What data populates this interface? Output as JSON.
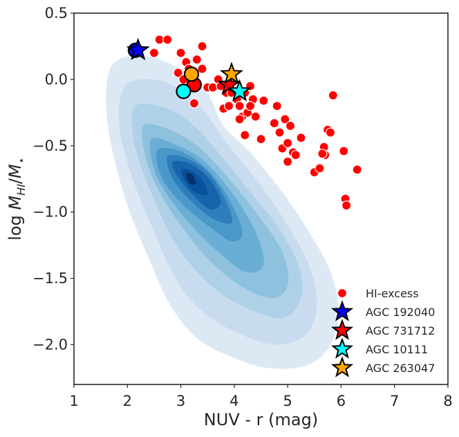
{
  "chart_data": {
    "type": "scatter",
    "title": "",
    "xlabel": "NUV - r (mag)",
    "ylabel": "log M_HI/M_*",
    "ylabel_parts": {
      "main": "log ",
      "m1": "M",
      "sub1": "HI",
      "slash": "/",
      "m2": "M",
      "sub2": "⋆"
    },
    "xlim": [
      1,
      8
    ],
    "ylim": [
      -2.3,
      0.5
    ],
    "xticks": [
      1,
      2,
      3,
      4,
      5,
      6,
      7,
      8
    ],
    "xtick_labels": [
      "1",
      "2",
      "3",
      "4",
      "5",
      "6",
      "7",
      "8"
    ],
    "yticks": [
      0.5,
      0.0,
      -0.5,
      -1.0,
      -1.5,
      -2.0
    ],
    "ytick_labels": [
      "0.5",
      "0.0",
      "−0.5",
      "−1.0",
      "−1.5",
      "−2.0"
    ],
    "grid": false,
    "legend_position": "lower-right",
    "density_background": {
      "description_colormap": "Blues",
      "peak": [
        3.1,
        -0.75
      ],
      "levels": [
        {
          "color": "#dce9f5",
          "ring": [
            [
              1.7,
              0.1
            ],
            [
              2.1,
              0.18
            ],
            [
              2.6,
              0.15
            ],
            [
              3.1,
              0.05
            ],
            [
              3.5,
              -0.1
            ],
            [
              3.8,
              -0.35
            ],
            [
              4.3,
              -0.55
            ],
            [
              4.9,
              -0.85
            ],
            [
              5.4,
              -1.15
            ],
            [
              5.8,
              -1.45
            ],
            [
              5.95,
              -1.75
            ],
            [
              5.8,
              -2.0
            ],
            [
              5.4,
              -2.15
            ],
            [
              4.7,
              -2.18
            ],
            [
              4.0,
              -2.1
            ],
            [
              3.3,
              -1.95
            ],
            [
              2.8,
              -1.7
            ],
            [
              2.4,
              -1.35
            ],
            [
              2.0,
              -0.95
            ],
            [
              1.7,
              -0.5
            ],
            [
              1.6,
              -0.15
            ]
          ]
        },
        {
          "color": "#c9dcef",
          "ring": [
            [
              1.95,
              -0.05
            ],
            [
              2.5,
              0.0
            ],
            [
              3.0,
              -0.08
            ],
            [
              3.45,
              -0.25
            ],
            [
              3.9,
              -0.5
            ],
            [
              4.5,
              -0.8
            ],
            [
              5.0,
              -1.1
            ],
            [
              5.4,
              -1.4
            ],
            [
              5.55,
              -1.7
            ],
            [
              5.35,
              -1.92
            ],
            [
              4.8,
              -2.0
            ],
            [
              4.1,
              -1.92
            ],
            [
              3.4,
              -1.75
            ],
            [
              2.9,
              -1.5
            ],
            [
              2.5,
              -1.15
            ],
            [
              2.1,
              -0.75
            ],
            [
              1.85,
              -0.35
            ]
          ]
        },
        {
          "color": "#afd1e7",
          "ring": [
            [
              2.15,
              -0.2
            ],
            [
              2.6,
              -0.2
            ],
            [
              3.1,
              -0.3
            ],
            [
              3.6,
              -0.5
            ],
            [
              4.2,
              -0.8
            ],
            [
              4.8,
              -1.1
            ],
            [
              5.2,
              -1.4
            ],
            [
              5.25,
              -1.65
            ],
            [
              4.9,
              -1.8
            ],
            [
              4.2,
              -1.72
            ],
            [
              3.55,
              -1.55
            ],
            [
              3.0,
              -1.3
            ],
            [
              2.6,
              -1.0
            ],
            [
              2.25,
              -0.65
            ],
            [
              2.1,
              -0.4
            ]
          ]
        },
        {
          "color": "#8dc1dd",
          "ring": [
            [
              2.3,
              -0.35
            ],
            [
              2.8,
              -0.38
            ],
            [
              3.3,
              -0.5
            ],
            [
              3.8,
              -0.7
            ],
            [
              4.4,
              -1.0
            ],
            [
              4.9,
              -1.3
            ],
            [
              5.0,
              -1.55
            ],
            [
              4.7,
              -1.65
            ],
            [
              4.1,
              -1.55
            ],
            [
              3.5,
              -1.35
            ],
            [
              3.0,
              -1.1
            ],
            [
              2.6,
              -0.85
            ],
            [
              2.35,
              -0.6
            ]
          ]
        },
        {
          "color": "#6aaed6",
          "ring": [
            [
              2.45,
              -0.45
            ],
            [
              2.95,
              -0.5
            ],
            [
              3.45,
              -0.62
            ],
            [
              3.95,
              -0.85
            ],
            [
              4.4,
              -1.15
            ],
            [
              4.55,
              -1.4
            ],
            [
              4.2,
              -1.45
            ],
            [
              3.7,
              -1.3
            ],
            [
              3.2,
              -1.1
            ],
            [
              2.8,
              -0.9
            ],
            [
              2.5,
              -0.68
            ]
          ]
        },
        {
          "color": "#4a98c9",
          "ring": [
            [
              2.6,
              -0.52
            ],
            [
              3.05,
              -0.55
            ],
            [
              3.5,
              -0.68
            ],
            [
              3.9,
              -0.9
            ],
            [
              4.15,
              -1.15
            ],
            [
              3.95,
              -1.22
            ],
            [
              3.5,
              -1.1
            ],
            [
              3.05,
              -0.95
            ],
            [
              2.7,
              -0.78
            ],
            [
              2.55,
              -0.62
            ]
          ]
        },
        {
          "color": "#2e7ebc",
          "ring": [
            [
              2.75,
              -0.58
            ],
            [
              3.15,
              -0.6
            ],
            [
              3.55,
              -0.72
            ],
            [
              3.85,
              -0.92
            ],
            [
              3.95,
              -1.08
            ],
            [
              3.6,
              -1.05
            ],
            [
              3.2,
              -0.92
            ],
            [
              2.85,
              -0.75
            ]
          ]
        },
        {
          "color": "#1764ab",
          "ring": [
            [
              2.85,
              -0.62
            ],
            [
              3.2,
              -0.64
            ],
            [
              3.55,
              -0.76
            ],
            [
              3.75,
              -0.92
            ],
            [
              3.55,
              -0.98
            ],
            [
              3.2,
              -0.86
            ],
            [
              2.92,
              -0.72
            ]
          ]
        },
        {
          "color": "#08519c",
          "ring": [
            [
              3.0,
              -0.68
            ],
            [
              3.2,
              -0.69
            ],
            [
              3.4,
              -0.76
            ],
            [
              3.5,
              -0.86
            ],
            [
              3.3,
              -0.86
            ],
            [
              3.1,
              -0.78
            ]
          ]
        },
        {
          "color": "#08306b",
          "ring": [
            [
              3.1,
              -0.71
            ],
            [
              3.22,
              -0.72
            ],
            [
              3.28,
              -0.79
            ],
            [
              3.15,
              -0.78
            ]
          ]
        }
      ]
    },
    "series": [
      {
        "name": "HI-excess",
        "marker": "circle",
        "color": "#ff0000",
        "points": [
          [
            2.5,
            0.2
          ],
          [
            2.6,
            0.3
          ],
          [
            2.75,
            0.3
          ],
          [
            3.0,
            0.2
          ],
          [
            3.1,
            0.13
          ],
          [
            3.15,
            0.08
          ],
          [
            2.95,
            0.05
          ],
          [
            3.05,
            0.0
          ],
          [
            3.3,
            0.15
          ],
          [
            3.4,
            0.25
          ],
          [
            3.4,
            0.08
          ],
          [
            3.5,
            -0.06
          ],
          [
            3.6,
            -0.06
          ],
          [
            3.7,
            0.0
          ],
          [
            3.25,
            -0.18
          ],
          [
            3.75,
            -0.05
          ],
          [
            3.85,
            -0.1
          ],
          [
            3.8,
            -0.22
          ],
          [
            3.9,
            -0.2
          ],
          [
            3.95,
            -0.1
          ],
          [
            4.05,
            -0.15
          ],
          [
            4.1,
            -0.2
          ],
          [
            4.15,
            -0.28
          ],
          [
            4.25,
            -0.25
          ],
          [
            4.2,
            -0.1
          ],
          [
            4.3,
            -0.05
          ],
          [
            4.35,
            -0.15
          ],
          [
            4.4,
            -0.28
          ],
          [
            4.2,
            -0.42
          ],
          [
            4.3,
            -0.2
          ],
          [
            4.1,
            -0.3
          ],
          [
            4.55,
            -0.16
          ],
          [
            4.5,
            -0.45
          ],
          [
            4.75,
            -0.33
          ],
          [
            4.8,
            -0.2
          ],
          [
            4.85,
            -0.4
          ],
          [
            4.95,
            -0.3
          ],
          [
            4.9,
            -0.52
          ],
          [
            5.0,
            -0.48
          ],
          [
            5.05,
            -0.35
          ],
          [
            5.1,
            -0.55
          ],
          [
            5.0,
            -0.62
          ],
          [
            5.15,
            -0.57
          ],
          [
            5.25,
            -0.44
          ],
          [
            5.5,
            -0.7
          ],
          [
            5.6,
            -0.67
          ],
          [
            5.68,
            -0.51
          ],
          [
            5.7,
            -0.57
          ],
          [
            5.75,
            -0.38
          ],
          [
            5.8,
            -0.4
          ],
          [
            5.85,
            -0.12
          ],
          [
            6.05,
            -0.54
          ],
          [
            6.08,
            -0.9
          ],
          [
            6.1,
            -0.95
          ],
          [
            6.3,
            -0.68
          ],
          [
            5.65,
            -0.56
          ]
        ]
      },
      {
        "name": "AGC 192040",
        "marker": "star",
        "color": "#0000ff",
        "points": [
          [
            2.2,
            0.22
          ]
        ],
        "gas_marker": {
          "color": "#0000ff",
          "point": [
            2.15,
            0.22
          ]
        }
      },
      {
        "name": "AGC 731712",
        "marker": "star",
        "color": "#ff0000",
        "points": [
          [
            3.9,
            -0.04
          ]
        ],
        "gas_marker": {
          "color": "#ff0000",
          "point": [
            3.25,
            -0.04
          ]
        }
      },
      {
        "name": "AGC 10111",
        "marker": "star",
        "color": "#00ffff",
        "points": [
          [
            4.1,
            -0.09
          ]
        ],
        "gas_marker": {
          "color": "#00ffff",
          "point": [
            3.05,
            -0.09
          ]
        }
      },
      {
        "name": "AGC 263047",
        "marker": "star",
        "color": "#ffa500",
        "points": [
          [
            3.95,
            0.04
          ]
        ],
        "gas_marker": {
          "color": "#ffa500",
          "point": [
            3.2,
            0.04
          ]
        }
      }
    ]
  }
}
